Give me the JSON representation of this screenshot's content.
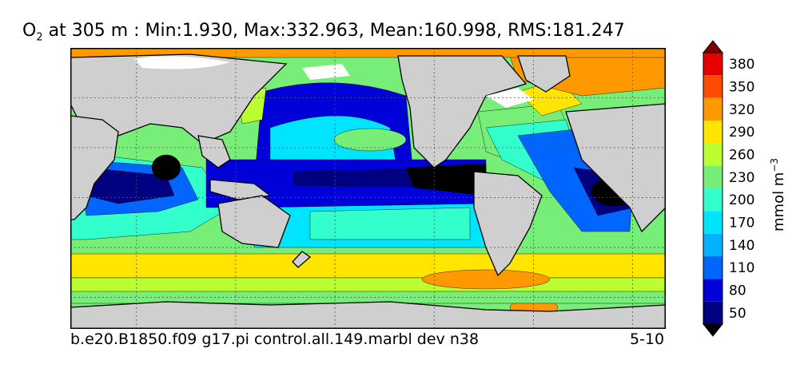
{
  "title": {
    "species": "O",
    "species_sub": "2",
    "rest": " at 305 m : Min:1.930, Max:332.963, Mean:160.998, RMS:181.247"
  },
  "caption": {
    "left": "b.e20.B1850.f09 g17.pi control.all.149.marbl dev n38",
    "right": "5-10"
  },
  "colors": {
    "land": "#cfcfcf",
    "missing": "#ffffff",
    "frame": "#000000",
    "grid": "#555555"
  },
  "chart_data": {
    "type": "heatmap",
    "variable": "O2",
    "depth": "305 m",
    "stats": {
      "min": 1.93,
      "max": 332.963,
      "mean": 160.998,
      "rms": 181.247
    },
    "colorbar": {
      "units": "mmol m",
      "units_sup": "−3",
      "ticks": [
        50,
        80,
        110,
        140,
        170,
        200,
        230,
        260,
        290,
        320,
        350,
        380
      ],
      "levels": [
        {
          "lo": null,
          "hi": 35,
          "color": "#000000"
        },
        {
          "lo": 35,
          "hi": 65,
          "color": "#000080"
        },
        {
          "lo": 65,
          "hi": 95,
          "color": "#0000d8"
        },
        {
          "lo": 95,
          "hi": 125,
          "color": "#0066ff"
        },
        {
          "lo": 125,
          "hi": 155,
          "color": "#00b2ff"
        },
        {
          "lo": 155,
          "hi": 185,
          "color": "#00e5ff"
        },
        {
          "lo": 185,
          "hi": 215,
          "color": "#33ffcc"
        },
        {
          "lo": 215,
          "hi": 245,
          "color": "#77ee77"
        },
        {
          "lo": 245,
          "hi": 275,
          "color": "#bbff33"
        },
        {
          "lo": 275,
          "hi": 305,
          "color": "#ffe500"
        },
        {
          "lo": 305,
          "hi": 335,
          "color": "#ff9900"
        },
        {
          "lo": 335,
          "hi": 365,
          "color": "#ff4c00"
        },
        {
          "lo": 365,
          "hi": 395,
          "color": "#e60000"
        },
        {
          "lo": 395,
          "hi": null,
          "color": "#800000"
        }
      ],
      "extend": "both"
    },
    "map": {
      "projection": "lon-lat",
      "lon_range": [
        20,
        380
      ],
      "lat_range": [
        -79,
        90
      ],
      "grid_lon": [
        60,
        120,
        180,
        240,
        300,
        360
      ],
      "grid_lat": [
        -60,
        -30,
        0,
        30,
        60
      ],
      "grid": true
    }
  }
}
